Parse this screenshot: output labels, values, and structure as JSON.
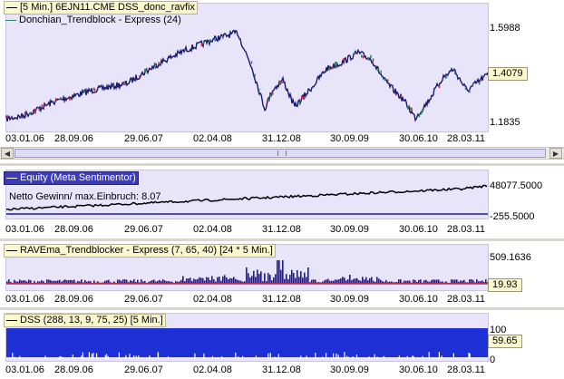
{
  "x_ticks": [
    "03.01.06",
    "28.09.06",
    "29.06.07",
    "02.04.08",
    "31.12.08",
    "30.09.09",
    "30.06.10",
    "28.03.11"
  ],
  "panel1": {
    "legend_1": "[5 Min.] 6EJN11.CME DSS_donc_ravfix",
    "legend_2": "Donchian_Trendblock - Express  (24)",
    "y_top": "1.5988",
    "y_bottom": "1.1835",
    "current_value": "1.4079"
  },
  "panel2": {
    "legend": "Equity (Meta Sentimentor)",
    "note": "Netto Gewinn/ max.Einbruch: 8.07",
    "y_top": "48077.5000",
    "y_bottom": "-255.5000"
  },
  "panel3": {
    "legend": "RAVEma_Trendblocker - Express  (7, 65, 40) [24 * 5 Min.]",
    "y_top": "509.1636",
    "current_value": "19.93"
  },
  "panel4": {
    "legend": "DSS  (288, 13, 9, 75, 25) [5 Min.]",
    "y_top": "100",
    "y_bottom": "0",
    "current_value": "59.65"
  },
  "colors": {
    "plot_bg": "#e8e4fa",
    "price": "#1a1a6e",
    "up_marker": "#2e8b57",
    "down_marker": "#d0284a",
    "equity": "#000000",
    "dss_fill": "#1f2fd6",
    "rav_bar": "#1a1aa0"
  },
  "icons": {
    "scroll_left": "triangle-left",
    "scroll_right": "triangle-right"
  }
}
